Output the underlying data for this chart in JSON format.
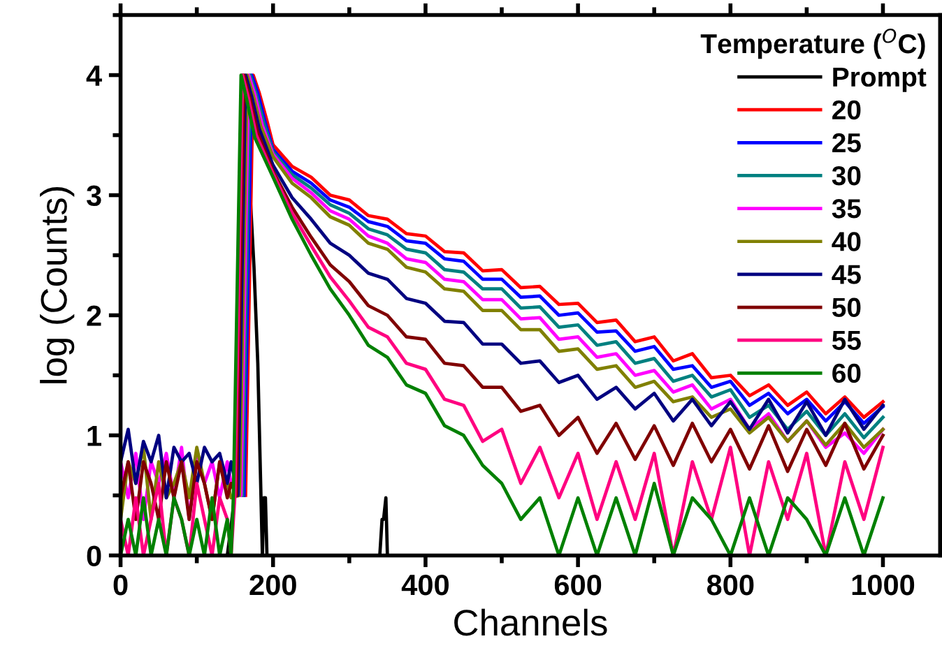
{
  "chart_data": {
    "type": "line",
    "xlabel": "Channels",
    "ylabel": "log (Counts)",
    "legend_title": "Temperature ($^{O}$C)",
    "legend": "top right",
    "grid": false,
    "marker": "none",
    "line_style": "solid",
    "xlim": [
      0,
      1075
    ],
    "xticks": [
      0,
      200,
      400,
      600,
      800,
      1000
    ],
    "ylim": [
      0,
      4.5
    ],
    "yticks": [
      0,
      1,
      2,
      3,
      4
    ],
    "series": [
      {
        "name": "Prompt",
        "color": "#000000",
        "x": [
          140,
          150,
          155,
          160,
          165,
          170,
          175,
          180,
          183,
          186,
          188,
          190,
          192,
          200,
          340,
          343,
          345,
          348,
          350,
          1000
        ],
        "values": [
          0,
          0.5,
          2.5,
          4.0,
          3.7,
          3.0,
          2.4,
          1.6,
          0.8,
          0,
          0.48,
          0.48,
          0,
          0,
          0,
          0.3,
          0.3,
          0.48,
          0,
          0
        ]
      },
      {
        "name": "20",
        "color": "#ff0000",
        "x": [
          164,
          170,
          174,
          182,
          192,
          200,
          225,
          250,
          275,
          300,
          325,
          350,
          375,
          400,
          425,
          450,
          475,
          500,
          525,
          550,
          575,
          600,
          625,
          650,
          675,
          700,
          725,
          750,
          775,
          800,
          825,
          850,
          875,
          900,
          925,
          950,
          975,
          1000
        ],
        "values": [
          0.5,
          2.6,
          4.0,
          3.85,
          3.62,
          3.42,
          3.24,
          3.15,
          3.0,
          2.96,
          2.83,
          2.8,
          2.68,
          2.66,
          2.53,
          2.52,
          2.37,
          2.38,
          2.23,
          2.24,
          2.09,
          2.1,
          1.94,
          1.96,
          1.78,
          1.82,
          1.62,
          1.68,
          1.48,
          1.5,
          1.33,
          1.42,
          1.25,
          1.36,
          1.18,
          1.32,
          1.15,
          1.28
        ]
      },
      {
        "name": "25",
        "color": "#0000ff",
        "x": [
          162,
          168,
          172,
          180,
          190,
          200,
          225,
          250,
          275,
          300,
          325,
          350,
          375,
          400,
          425,
          450,
          475,
          500,
          525,
          550,
          575,
          600,
          625,
          650,
          675,
          700,
          725,
          750,
          775,
          800,
          825,
          850,
          875,
          900,
          925,
          950,
          975,
          1000
        ],
        "values": [
          0.5,
          2.6,
          4.0,
          3.85,
          3.6,
          3.38,
          3.2,
          3.1,
          2.96,
          2.9,
          2.78,
          2.74,
          2.62,
          2.6,
          2.47,
          2.45,
          2.3,
          2.3,
          2.15,
          2.16,
          2.0,
          2.02,
          1.86,
          1.87,
          1.7,
          1.74,
          1.55,
          1.58,
          1.4,
          1.45,
          1.25,
          1.35,
          1.18,
          1.3,
          1.12,
          1.28,
          1.1,
          1.24
        ]
      },
      {
        "name": "30",
        "color": "#008080",
        "x": [
          160,
          166,
          170,
          178,
          188,
          200,
          225,
          250,
          275,
          300,
          325,
          350,
          375,
          400,
          425,
          450,
          475,
          500,
          525,
          550,
          575,
          600,
          625,
          650,
          675,
          700,
          725,
          750,
          775,
          800,
          825,
          850,
          875,
          900,
          925,
          950,
          975,
          1000
        ],
        "values": [
          0.5,
          2.6,
          4.0,
          3.84,
          3.6,
          3.36,
          3.17,
          3.06,
          2.92,
          2.85,
          2.72,
          2.67,
          2.55,
          2.52,
          2.38,
          2.36,
          2.22,
          2.22,
          2.06,
          2.07,
          1.9,
          1.92,
          1.75,
          1.78,
          1.6,
          1.64,
          1.45,
          1.5,
          1.32,
          1.38,
          1.15,
          1.25,
          1.05,
          1.2,
          1.0,
          1.18,
          0.98,
          1.15
        ]
      },
      {
        "name": "35",
        "color": "#ff00ff",
        "x": [
          0,
          10,
          20,
          30,
          40,
          50,
          60,
          70,
          80,
          90,
          100,
          110,
          120,
          130,
          140,
          145,
          158,
          164,
          168,
          176,
          186,
          200,
          225,
          250,
          275,
          300,
          325,
          350,
          375,
          400,
          425,
          450,
          475,
          500,
          525,
          550,
          575,
          600,
          625,
          650,
          675,
          700,
          725,
          750,
          775,
          800,
          825,
          850,
          875,
          900,
          925,
          950,
          975,
          1000
        ],
        "values": [
          0.78,
          0.48,
          0.85,
          0.3,
          0.78,
          0.6,
          0.85,
          0.48,
          0.9,
          0.3,
          0.85,
          0.6,
          0.78,
          0.48,
          0.78,
          0.6,
          0.5,
          2.6,
          4.0,
          3.84,
          3.58,
          3.34,
          3.14,
          3.02,
          2.87,
          2.8,
          2.66,
          2.6,
          2.47,
          2.44,
          2.3,
          2.28,
          2.13,
          2.13,
          1.97,
          1.98,
          1.8,
          1.82,
          1.65,
          1.68,
          1.5,
          1.54,
          1.36,
          1.42,
          1.22,
          1.3,
          1.05,
          1.18,
          0.95,
          1.12,
          0.9,
          1.02,
          0.85,
          1.05
        ]
      },
      {
        "name": "40",
        "color": "#808000",
        "x": [
          0,
          10,
          20,
          30,
          40,
          50,
          60,
          70,
          80,
          90,
          100,
          110,
          120,
          130,
          140,
          145,
          156,
          162,
          166,
          174,
          184,
          200,
          225,
          250,
          275,
          300,
          325,
          350,
          375,
          400,
          425,
          450,
          475,
          500,
          525,
          550,
          575,
          600,
          625,
          650,
          675,
          700,
          725,
          750,
          775,
          800,
          825,
          850,
          875,
          900,
          925,
          950,
          975,
          1000
        ],
        "values": [
          0.3,
          0.78,
          0.6,
          0.9,
          0.3,
          0.78,
          0.48,
          0.6,
          0.78,
          0.48,
          0.9,
          0.6,
          0.3,
          0.78,
          0.6,
          0.48,
          0.5,
          2.6,
          4.0,
          3.83,
          3.57,
          3.32,
          3.1,
          2.98,
          2.82,
          2.75,
          2.6,
          2.55,
          2.4,
          2.36,
          2.22,
          2.2,
          2.04,
          2.04,
          1.88,
          1.88,
          1.7,
          1.72,
          1.55,
          1.58,
          1.4,
          1.45,
          1.28,
          1.32,
          1.15,
          1.22,
          1.02,
          1.15,
          0.95,
          1.12,
          0.92,
          1.1,
          0.9,
          1.05
        ]
      },
      {
        "name": "45",
        "color": "#000080",
        "x": [
          0,
          10,
          20,
          30,
          40,
          50,
          60,
          70,
          80,
          90,
          100,
          110,
          120,
          130,
          140,
          145,
          154,
          160,
          164,
          172,
          182,
          200,
          225,
          250,
          275,
          300,
          325,
          350,
          375,
          400,
          425,
          450,
          475,
          500,
          525,
          550,
          575,
          600,
          625,
          650,
          675,
          700,
          725,
          750,
          775,
          800,
          825,
          850,
          875,
          900,
          925,
          950,
          975,
          1000
        ],
        "values": [
          0.78,
          1.05,
          0.6,
          0.95,
          0.78,
          1.0,
          0.48,
          0.9,
          0.78,
          0.85,
          0.6,
          0.9,
          0.78,
          0.85,
          0.6,
          0.78,
          0.5,
          2.6,
          4.0,
          3.82,
          3.55,
          3.25,
          2.98,
          2.8,
          2.6,
          2.5,
          2.35,
          2.3,
          2.14,
          2.1,
          1.95,
          1.94,
          1.76,
          1.76,
          1.6,
          1.62,
          1.44,
          1.5,
          1.3,
          1.4,
          1.22,
          1.35,
          1.12,
          1.3,
          1.08,
          1.28,
          1.05,
          1.3,
          1.02,
          1.28,
          1.0,
          1.3,
          1.05,
          1.25
        ]
      },
      {
        "name": "50",
        "color": "#800000",
        "x": [
          0,
          10,
          20,
          30,
          40,
          50,
          60,
          70,
          80,
          90,
          100,
          110,
          120,
          130,
          140,
          145,
          152,
          158,
          162,
          170,
          180,
          200,
          225,
          250,
          275,
          300,
          325,
          350,
          375,
          400,
          425,
          450,
          475,
          500,
          525,
          550,
          575,
          600,
          625,
          650,
          675,
          700,
          725,
          750,
          775,
          800,
          825,
          850,
          875,
          900,
          925,
          950,
          975,
          1000
        ],
        "values": [
          0.48,
          0.78,
          0.3,
          0.78,
          0.6,
          0.3,
          0.78,
          0.48,
          0.78,
          0.3,
          0.78,
          0.6,
          0.3,
          0.78,
          0.48,
          0.6,
          0.5,
          2.6,
          4.0,
          3.8,
          3.52,
          3.2,
          2.9,
          2.65,
          2.42,
          2.28,
          2.08,
          2.0,
          1.82,
          1.8,
          1.6,
          1.58,
          1.4,
          1.4,
          1.2,
          1.25,
          1.0,
          1.15,
          0.85,
          1.1,
          0.8,
          1.08,
          0.75,
          1.1,
          0.78,
          1.05,
          0.72,
          1.08,
          0.7,
          1.05,
          0.75,
          1.1,
          0.72,
          1.0
        ]
      },
      {
        "name": "55",
        "color": "#ff0080",
        "x": [
          0,
          10,
          20,
          30,
          40,
          50,
          60,
          70,
          80,
          90,
          100,
          110,
          120,
          130,
          140,
          145,
          150,
          156,
          160,
          168,
          178,
          200,
          225,
          250,
          275,
          300,
          325,
          350,
          375,
          400,
          425,
          450,
          475,
          500,
          525,
          550,
          575,
          600,
          625,
          650,
          675,
          700,
          725,
          750,
          775,
          800,
          825,
          850,
          875,
          900,
          925,
          950,
          975,
          1000
        ],
        "values": [
          0.3,
          0.0,
          0.48,
          0.0,
          0.3,
          0.6,
          0.0,
          0.48,
          0.3,
          0.0,
          0.6,
          0.3,
          0.0,
          0.48,
          0.3,
          0.0,
          0.5,
          2.6,
          4.0,
          3.8,
          3.5,
          3.18,
          2.85,
          2.58,
          2.32,
          2.12,
          1.9,
          1.82,
          1.6,
          1.55,
          1.3,
          1.25,
          0.95,
          1.05,
          0.6,
          0.9,
          0.48,
          0.85,
          0.3,
          0.78,
          0.3,
          0.85,
          0.0,
          0.78,
          0.3,
          0.9,
          0.0,
          0.78,
          0.3,
          0.85,
          0.0,
          0.78,
          0.3,
          0.9
        ]
      },
      {
        "name": "60",
        "color": "#008000",
        "x": [
          0,
          10,
          20,
          30,
          40,
          50,
          60,
          70,
          80,
          90,
          100,
          110,
          120,
          130,
          140,
          145,
          148,
          154,
          158,
          166,
          176,
          200,
          225,
          250,
          275,
          300,
          325,
          350,
          375,
          400,
          425,
          450,
          475,
          500,
          525,
          550,
          575,
          600,
          625,
          650,
          675,
          700,
          725,
          750,
          775,
          800,
          825,
          850,
          875,
          900,
          925,
          950,
          975,
          1000
        ],
        "values": [
          0.0,
          0.3,
          0.0,
          0.48,
          0.0,
          0.3,
          0.0,
          0.48,
          0.3,
          0.0,
          0.3,
          0.0,
          0.48,
          0.0,
          0.3,
          0.0,
          0.5,
          2.6,
          4.0,
          3.78,
          3.48,
          3.15,
          2.8,
          2.5,
          2.22,
          2.0,
          1.75,
          1.65,
          1.42,
          1.35,
          1.08,
          1.0,
          0.75,
          0.6,
          0.3,
          0.48,
          0.0,
          0.48,
          0.0,
          0.48,
          0.0,
          0.6,
          0.0,
          0.48,
          0.3,
          0.0,
          0.48,
          0.0,
          0.48,
          0.3,
          0.0,
          0.48,
          0.0,
          0.48
        ]
      }
    ]
  }
}
